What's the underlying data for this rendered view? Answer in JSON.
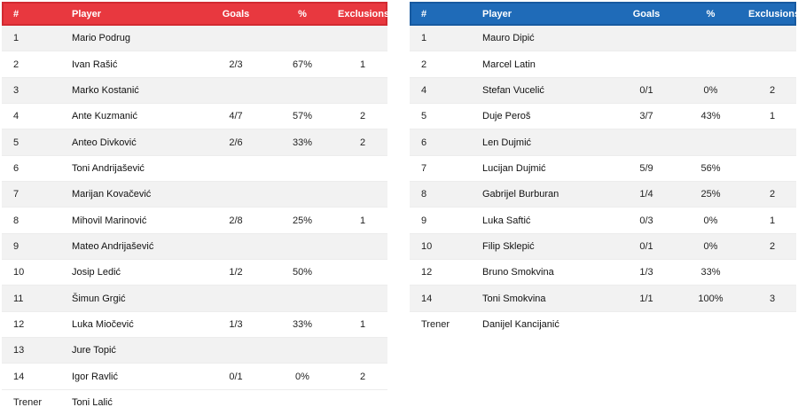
{
  "columns": {
    "num": "#",
    "player": "Player",
    "goals": "Goals",
    "pct": "%",
    "exclusions": "Exclusions"
  },
  "teams": [
    {
      "accent": "#e8383f",
      "players": [
        {
          "num": "1",
          "name": "Mario Podrug",
          "goals": "",
          "pct": "",
          "exc": ""
        },
        {
          "num": "2",
          "name": "Ivan Rašić",
          "goals": "2/3",
          "pct": "67%",
          "exc": "1"
        },
        {
          "num": "3",
          "name": "Marko Kostanić",
          "goals": "",
          "pct": "",
          "exc": ""
        },
        {
          "num": "4",
          "name": "Ante Kuzmanić",
          "goals": "4/7",
          "pct": "57%",
          "exc": "2"
        },
        {
          "num": "5",
          "name": "Anteo Divković",
          "goals": "2/6",
          "pct": "33%",
          "exc": "2"
        },
        {
          "num": "6",
          "name": "Toni Andrijašević",
          "goals": "",
          "pct": "",
          "exc": ""
        },
        {
          "num": "7",
          "name": "Marijan Kovačević",
          "goals": "",
          "pct": "",
          "exc": ""
        },
        {
          "num": "8",
          "name": "Mihovil Marinović",
          "goals": "2/8",
          "pct": "25%",
          "exc": "1"
        },
        {
          "num": "9",
          "name": "Mateo Andrijašević",
          "goals": "",
          "pct": "",
          "exc": ""
        },
        {
          "num": "10",
          "name": "Josip Ledić",
          "goals": "1/2",
          "pct": "50%",
          "exc": ""
        },
        {
          "num": "11",
          "name": "Šimun Grgić",
          "goals": "",
          "pct": "",
          "exc": ""
        },
        {
          "num": "12",
          "name": "Luka Miočević",
          "goals": "1/3",
          "pct": "33%",
          "exc": "1"
        },
        {
          "num": "13",
          "name": "Jure Topić",
          "goals": "",
          "pct": "",
          "exc": ""
        },
        {
          "num": "14",
          "name": "Igor Ravlić",
          "goals": "0/1",
          "pct": "0%",
          "exc": "2"
        }
      ],
      "coach": {
        "label": "Trener",
        "name": "Toni Lalić"
      }
    },
    {
      "accent": "#1f6bb8",
      "players": [
        {
          "num": "1",
          "name": "Mauro Dipić",
          "goals": "",
          "pct": "",
          "exc": ""
        },
        {
          "num": "2",
          "name": "Marcel Latin",
          "goals": "",
          "pct": "",
          "exc": ""
        },
        {
          "num": "4",
          "name": "Stefan Vucelić",
          "goals": "0/1",
          "pct": "0%",
          "exc": "2"
        },
        {
          "num": "5",
          "name": "Duje Peroš",
          "goals": "3/7",
          "pct": "43%",
          "exc": "1"
        },
        {
          "num": "6",
          "name": "Len Dujmić",
          "goals": "",
          "pct": "",
          "exc": ""
        },
        {
          "num": "7",
          "name": "Lucijan Dujmić",
          "goals": "5/9",
          "pct": "56%",
          "exc": ""
        },
        {
          "num": "8",
          "name": "Gabrijel Burburan",
          "goals": "1/4",
          "pct": "25%",
          "exc": "2"
        },
        {
          "num": "9",
          "name": "Luka Saftić",
          "goals": "0/3",
          "pct": "0%",
          "exc": "1"
        },
        {
          "num": "10",
          "name": "Filip Sklepić",
          "goals": "0/1",
          "pct": "0%",
          "exc": "2"
        },
        {
          "num": "12",
          "name": "Bruno Smokvina",
          "goals": "1/3",
          "pct": "33%",
          "exc": ""
        },
        {
          "num": "14",
          "name": "Toni Smokvina",
          "goals": "1/1",
          "pct": "100%",
          "exc": "3"
        }
      ],
      "coach": {
        "label": "Trener",
        "name": "Danijel Kancijanić"
      }
    }
  ]
}
